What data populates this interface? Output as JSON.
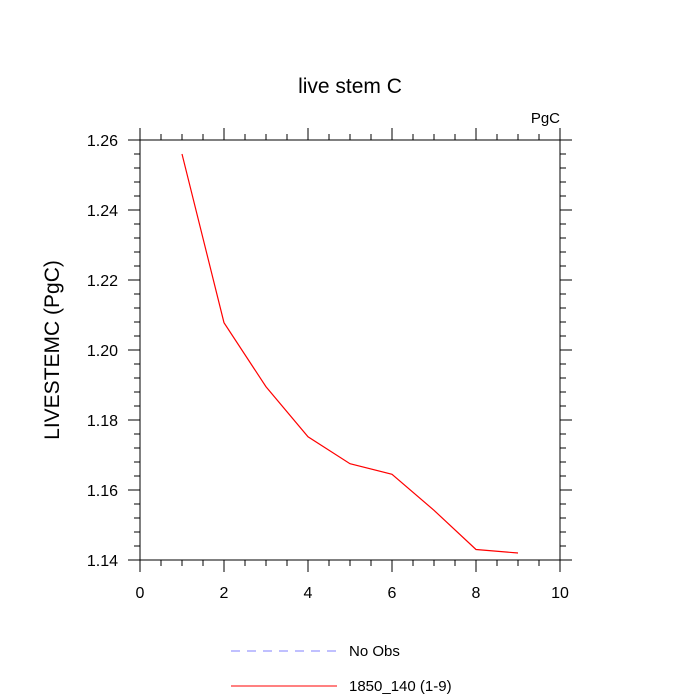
{
  "chart_data": {
    "type": "line",
    "title": "live stem C",
    "units_label": "PgC",
    "ylabel": "LIVESTEMC  (PgC)",
    "xlabel": "",
    "xlim": [
      0,
      10
    ],
    "ylim": [
      1.14,
      1.26
    ],
    "x_ticks": [
      "0",
      "2",
      "4",
      "6",
      "8",
      "10"
    ],
    "y_ticks": [
      "1.14",
      "1.16",
      "1.18",
      "1.20",
      "1.22",
      "1.24",
      "1.26"
    ],
    "series": [
      {
        "name": "1850_140 (1-9)",
        "color": "#ff0000",
        "x": [
          1,
          2,
          3,
          4,
          5,
          6,
          7,
          8,
          9
        ],
        "y": [
          1.256,
          1.2078,
          1.1895,
          1.1752,
          1.1675,
          1.1645,
          1.1542,
          1.143,
          1.142
        ]
      }
    ],
    "legend": [
      {
        "label": "No Obs",
        "color": "#8080ff",
        "style": "dashed"
      },
      {
        "label": "1850_140 (1-9)",
        "color": "#ff0000",
        "style": "solid"
      }
    ],
    "legend_position": "bottom-center",
    "grid": false
  }
}
